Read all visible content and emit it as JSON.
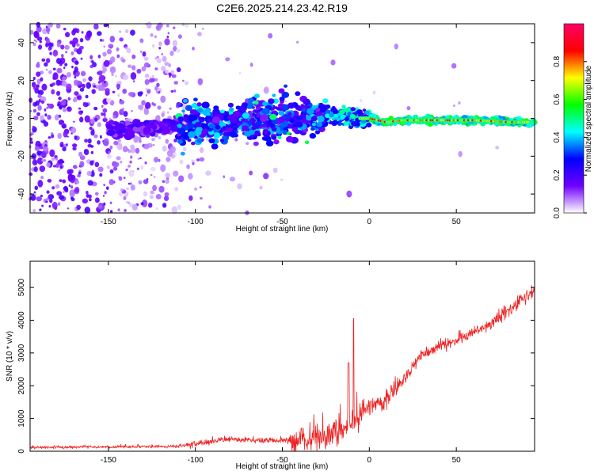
{
  "title": "C2E6.2025.214.23.42.R19",
  "chart_data": [
    {
      "type": "heatmap",
      "xlabel": "Height of straight line (km)",
      "ylabel": "Frequency (Hz)",
      "xlim": [
        -195,
        95
      ],
      "ylim": [
        -50,
        50
      ],
      "xticks": [
        -150,
        -100,
        -50,
        0,
        50
      ],
      "yticks": [
        -40,
        -20,
        0,
        20,
        40
      ],
      "colorbar": {
        "label": "Normalized spectral amplitude",
        "range": [
          0,
          1
        ],
        "ticks": [
          "0.0",
          "0.2",
          "0.4",
          "0.6",
          "0.8"
        ],
        "colors": [
          "#ffffff",
          "#7000ff",
          "#0000ff",
          "#00ffff",
          "#00ff00",
          "#ffff00",
          "#ff0000",
          "#ff0066"
        ]
      },
      "ridge": {
        "x": [
          -195,
          -150,
          -120,
          -100,
          -80,
          -60,
          -45,
          -30,
          -20,
          -10,
          0,
          10,
          20,
          40,
          60,
          80,
          95
        ],
        "y": [
          -6,
          -6,
          -5,
          -3,
          -2,
          -1,
          0,
          2,
          2,
          0,
          0,
          -2,
          -1,
          -1,
          -1,
          -2,
          -2
        ]
      }
    },
    {
      "type": "line",
      "xlabel": "Height of straight line (km)",
      "ylabel": "SNR (10 * v/v)",
      "xlim": [
        -195,
        95
      ],
      "ylim": [
        0,
        5800
      ],
      "xticks": [
        -150,
        -100,
        -50,
        0,
        50
      ],
      "yticks": [
        0,
        1000,
        2000,
        3000,
        4000,
        5000
      ],
      "color": "#ee2222",
      "trend": {
        "x": [
          -195,
          -150,
          -110,
          -100,
          -80,
          -60,
          -45,
          -35,
          -25,
          -15,
          -5,
          0,
          10,
          20,
          30,
          40,
          50,
          60,
          70,
          80,
          90,
          95
        ],
        "y": [
          120,
          130,
          150,
          220,
          380,
          330,
          320,
          350,
          500,
          700,
          1100,
          1400,
          1600,
          2200,
          2900,
          3200,
          3400,
          3600,
          3900,
          4300,
          4700,
          4900
        ]
      },
      "spike": {
        "x": -9,
        "y": 4050
      }
    }
  ]
}
